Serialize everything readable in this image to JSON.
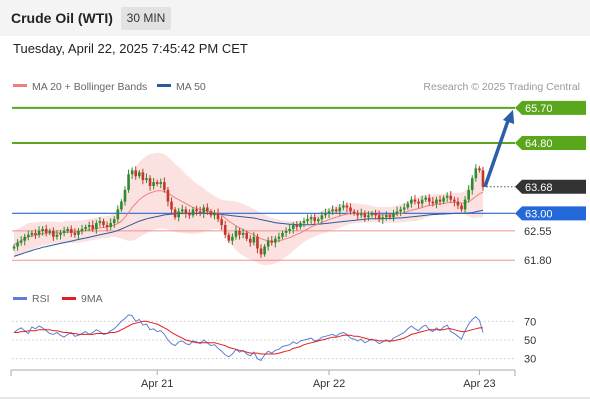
{
  "header": {
    "instrument": "Crude Oil (WTI)",
    "timeframe": "30 MIN",
    "timestamp": "Tuesday, April 22, 2025 7:45:42 PM CET"
  },
  "colors": {
    "resistance": "#5aa61c",
    "support": "#2469d9",
    "neutral_level": "#f09090",
    "current": "#333333",
    "bollinger_fill": "#fcdcdc",
    "ma20": "#f08080",
    "ma50": "#2a5aa0",
    "candle_up": "#2d8a2d",
    "candle_down": "#c0392b",
    "rsi": "#5b7fd6",
    "rsi_ma": "#e02020",
    "arrow": "#2b5fa8"
  },
  "chart_data": [
    {
      "type": "candlestick",
      "legend": [
        {
          "label": "MA 20 + Bollinger Bands",
          "color": "#f08080"
        },
        {
          "label": "MA 50",
          "color": "#2a5aa0"
        }
      ],
      "legend_placement": "top-left",
      "copyright": "Research © 2025 Trading Central",
      "ylim": [
        61.55,
        65.9
      ],
      "x_ticks": [
        {
          "label": "Apr 21",
          "index": 40
        },
        {
          "label": "Apr 22",
          "index": 88
        },
        {
          "label": "Apr 23",
          "index": 130
        }
      ],
      "levels": [
        {
          "value": 65.7,
          "label": "65.70",
          "kind": "resistance"
        },
        {
          "value": 64.8,
          "label": "64.80",
          "kind": "resistance"
        },
        {
          "value": 63.68,
          "label": "63.68",
          "kind": "current"
        },
        {
          "value": 63.0,
          "label": "63.00",
          "kind": "support"
        },
        {
          "value": 62.55,
          "label": "62.55",
          "kind": "neutral"
        },
        {
          "value": 61.8,
          "label": "61.80",
          "kind": "neutral"
        }
      ],
      "close": [
        62.15,
        62.25,
        62.3,
        62.4,
        62.45,
        62.5,
        62.45,
        62.55,
        62.6,
        62.5,
        62.55,
        62.4,
        62.45,
        62.5,
        62.55,
        62.6,
        62.5,
        62.45,
        62.55,
        62.6,
        62.65,
        62.7,
        62.6,
        62.75,
        62.8,
        62.7,
        62.65,
        62.75,
        62.85,
        63.1,
        63.3,
        63.6,
        64.0,
        64.1,
        63.95,
        64.05,
        63.85,
        63.9,
        63.7,
        63.8,
        63.75,
        63.8,
        63.6,
        63.3,
        63.1,
        62.9,
        63.05,
        63.1,
        63.0,
        62.95,
        63.1,
        63.05,
        63.0,
        63.15,
        63.05,
        62.95,
        63.0,
        62.85,
        62.7,
        62.45,
        62.3,
        62.4,
        62.55,
        62.45,
        62.5,
        62.35,
        62.25,
        62.4,
        62.1,
        61.95,
        62.15,
        62.3,
        62.25,
        62.35,
        62.4,
        62.5,
        62.55,
        62.6,
        62.7,
        62.65,
        62.75,
        62.8,
        62.85,
        62.9,
        62.8,
        62.85,
        62.95,
        63.0,
        63.05,
        63.1,
        63.05,
        63.15,
        63.2,
        63.15,
        63.05,
        63.0,
        62.95,
        63.0,
        62.9,
        62.95,
        63.0,
        62.95,
        62.85,
        62.9,
        62.95,
        62.9,
        63.0,
        63.05,
        63.1,
        63.15,
        63.25,
        63.35,
        63.3,
        63.25,
        63.35,
        63.4,
        63.3,
        63.25,
        63.35,
        63.3,
        63.4,
        63.45,
        63.35,
        63.3,
        63.2,
        63.1,
        63.35,
        63.6,
        63.9,
        64.15,
        64.1,
        63.68
      ],
      "ma20": [
        62.2,
        62.25,
        62.3,
        62.35,
        62.4,
        62.42,
        62.44,
        62.46,
        62.48,
        62.49,
        62.5,
        62.5,
        62.5,
        62.5,
        62.51,
        62.52,
        62.52,
        62.52,
        62.53,
        62.54,
        62.56,
        62.58,
        62.59,
        62.61,
        62.63,
        62.64,
        62.65,
        62.67,
        62.7,
        62.74,
        62.8,
        62.9,
        63.02,
        63.15,
        63.25,
        63.35,
        63.42,
        63.48,
        63.52,
        63.55,
        63.58,
        63.58,
        63.56,
        63.52,
        63.46,
        63.4,
        63.35,
        63.3,
        63.25,
        63.2,
        63.15,
        63.12,
        63.1,
        63.08,
        63.06,
        63.04,
        63.02,
        63.0,
        62.95,
        62.88,
        62.8,
        62.74,
        62.68,
        62.63,
        62.58,
        62.53,
        62.49,
        62.45,
        62.4,
        62.35,
        62.32,
        62.3,
        62.29,
        62.29,
        62.3,
        62.32,
        62.35,
        62.38,
        62.42,
        62.46,
        62.5,
        62.55,
        62.6,
        62.65,
        62.69,
        62.73,
        62.77,
        62.8,
        62.84,
        62.87,
        62.9,
        62.93,
        62.96,
        62.98,
        63.0,
        63.0,
        63.0,
        63.0,
        63.0,
        62.99,
        62.98,
        62.97,
        62.96,
        62.96,
        62.96,
        62.96,
        62.97,
        62.98,
        63.0,
        63.02,
        63.05,
        63.08,
        63.1,
        63.12,
        63.15,
        63.18,
        63.2,
        63.21,
        63.23,
        63.24,
        63.25,
        63.27,
        63.28,
        63.28,
        63.27,
        63.26,
        63.27,
        63.3,
        63.36,
        63.43,
        63.5,
        63.54
      ],
      "bb_width": [
        0.35,
        0.35,
        0.35,
        0.35,
        0.35,
        0.34,
        0.33,
        0.32,
        0.31,
        0.3,
        0.29,
        0.28,
        0.28,
        0.28,
        0.28,
        0.28,
        0.28,
        0.28,
        0.28,
        0.28,
        0.28,
        0.28,
        0.28,
        0.28,
        0.28,
        0.28,
        0.28,
        0.28,
        0.3,
        0.36,
        0.45,
        0.58,
        0.72,
        0.85,
        0.92,
        0.96,
        0.98,
        0.99,
        0.99,
        0.98,
        0.97,
        0.96,
        0.95,
        0.93,
        0.9,
        0.87,
        0.84,
        0.8,
        0.76,
        0.72,
        0.68,
        0.64,
        0.6,
        0.56,
        0.5,
        0.46,
        0.42,
        0.4,
        0.4,
        0.45,
        0.52,
        0.58,
        0.62,
        0.65,
        0.66,
        0.67,
        0.67,
        0.66,
        0.66,
        0.66,
        0.65,
        0.62,
        0.6,
        0.57,
        0.54,
        0.5,
        0.46,
        0.42,
        0.38,
        0.34,
        0.3,
        0.28,
        0.28,
        0.28,
        0.28,
        0.28,
        0.29,
        0.3,
        0.3,
        0.3,
        0.3,
        0.3,
        0.29,
        0.28,
        0.27,
        0.26,
        0.25,
        0.24,
        0.23,
        0.22,
        0.21,
        0.2,
        0.2,
        0.2,
        0.2,
        0.2,
        0.21,
        0.22,
        0.23,
        0.24,
        0.26,
        0.28,
        0.3,
        0.3,
        0.3,
        0.29,
        0.28,
        0.27,
        0.26,
        0.25,
        0.25,
        0.25,
        0.25,
        0.25,
        0.26,
        0.27,
        0.3,
        0.38,
        0.48,
        0.55,
        0.6,
        0.65
      ],
      "ma50": [
        61.9,
        61.93,
        61.96,
        61.99,
        62.02,
        62.05,
        62.08,
        62.1,
        62.13,
        62.15,
        62.17,
        62.19,
        62.21,
        62.23,
        62.25,
        62.27,
        62.29,
        62.31,
        62.33,
        62.35,
        62.37,
        62.39,
        62.41,
        62.43,
        62.45,
        62.47,
        62.49,
        62.51,
        62.53,
        62.56,
        62.6,
        62.64,
        62.68,
        62.72,
        62.76,
        62.8,
        62.83,
        62.86,
        62.88,
        62.9,
        62.92,
        62.94,
        62.96,
        62.97,
        62.98,
        62.99,
        63.0,
        63.0,
        63.0,
        63.0,
        63.0,
        63.0,
        63.0,
        63.0,
        63.0,
        62.99,
        62.99,
        62.98,
        62.97,
        62.96,
        62.95,
        62.94,
        62.93,
        62.92,
        62.91,
        62.9,
        62.89,
        62.88,
        62.86,
        62.84,
        62.82,
        62.8,
        62.78,
        62.76,
        62.75,
        62.74,
        62.73,
        62.72,
        62.72,
        62.71,
        62.71,
        62.71,
        62.71,
        62.71,
        62.72,
        62.72,
        62.73,
        62.74,
        62.75,
        62.76,
        62.77,
        62.78,
        62.79,
        62.8,
        62.81,
        62.82,
        62.83,
        62.84,
        62.85,
        62.86,
        62.86,
        62.86,
        62.86,
        62.86,
        62.87,
        62.87,
        62.87,
        62.88,
        62.88,
        62.89,
        62.9,
        62.91,
        62.92,
        62.93,
        62.94,
        62.95,
        62.96,
        62.97,
        62.97,
        62.98,
        62.98,
        62.99,
        62.99,
        63.0,
        63.0,
        63.0,
        63.0,
        63.01,
        63.02,
        63.04,
        63.06,
        63.08
      ]
    },
    {
      "type": "line",
      "legend": [
        {
          "label": "RSI",
          "color": "#5b7fd6"
        },
        {
          "label": "9MA",
          "color": "#e02020"
        }
      ],
      "ylim": [
        20,
        80
      ],
      "y_ticks": [
        70,
        50,
        30
      ],
      "rsi": [
        58,
        61,
        63,
        60,
        57,
        64,
        62,
        65,
        63,
        60,
        57,
        56,
        58,
        55,
        53,
        56,
        58,
        54,
        55,
        57,
        59,
        56,
        58,
        61,
        59,
        56,
        57,
        60,
        62,
        66,
        70,
        73,
        77,
        76,
        70,
        72,
        66,
        67,
        61,
        62,
        59,
        60,
        56,
        50,
        46,
        44,
        48,
        49,
        46,
        45,
        49,
        48,
        46,
        50,
        47,
        44,
        45,
        41,
        38,
        34,
        32,
        35,
        40,
        37,
        39,
        35,
        33,
        37,
        30,
        28,
        34,
        38,
        36,
        39,
        40,
        43,
        44,
        45,
        48,
        46,
        49,
        50,
        51,
        52,
        49,
        50,
        53,
        54,
        55,
        56,
        54,
        57,
        58,
        56,
        52,
        51,
        49,
        51,
        47,
        49,
        51,
        49,
        46,
        48,
        50,
        48,
        52,
        54,
        56,
        58,
        62,
        65,
        62,
        60,
        64,
        66,
        61,
        59,
        63,
        60,
        64,
        66,
        59,
        57,
        54,
        51,
        60,
        67,
        72,
        75,
        71,
        58
      ],
      "ma9": [
        58,
        58,
        59,
        59,
        60,
        60,
        60,
        61,
        61,
        61,
        61,
        60,
        60,
        59,
        58,
        58,
        57,
        57,
        56,
        56,
        56,
        56,
        56,
        57,
        57,
        57,
        57,
        58,
        58,
        59,
        61,
        63,
        65,
        67,
        68,
        69,
        70,
        70,
        69,
        68,
        67,
        65,
        63,
        61,
        58,
        56,
        54,
        52,
        50,
        49,
        48,
        47,
        47,
        47,
        47,
        47,
        47,
        46,
        45,
        44,
        42,
        41,
        40,
        39,
        38,
        37,
        36,
        36,
        36,
        35,
        35,
        35,
        35,
        35,
        36,
        37,
        38,
        39,
        41,
        42,
        43,
        45,
        46,
        47,
        48,
        49,
        50,
        51,
        52,
        53,
        53,
        54,
        55,
        55,
        55,
        54,
        54,
        53,
        52,
        51,
        50,
        50,
        49,
        49,
        49,
        49,
        49,
        50,
        51,
        52,
        54,
        56,
        57,
        58,
        59,
        60,
        61,
        61,
        61,
        61,
        61,
        62,
        62,
        61,
        60,
        59,
        59,
        60,
        61,
        62,
        63,
        63
      ]
    }
  ]
}
